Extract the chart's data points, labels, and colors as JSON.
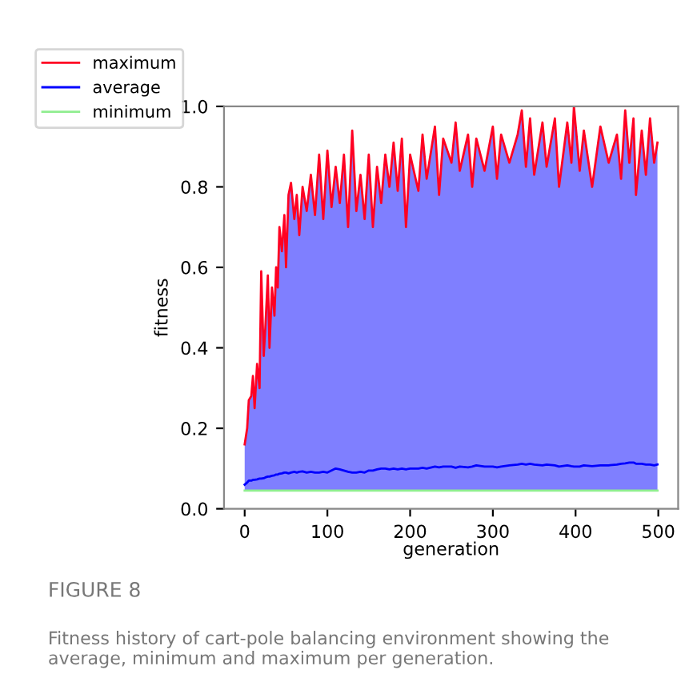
{
  "chart_data": {
    "type": "line",
    "xlabel": "generation",
    "ylabel": "fitness",
    "xlim": [
      -25,
      524
    ],
    "xticks": [
      0,
      100,
      200,
      300,
      400,
      500
    ],
    "ylim": [
      0.0,
      1.0
    ],
    "yticks": [
      {
        "value": 0.0,
        "label": "0.0"
      },
      0.2,
      0.4,
      0.6,
      0.8,
      {
        "value": 1.0,
        "label": "1.0"
      }
    ],
    "grid": false,
    "legend": "top left",
    "annotations": [
      "FIGURE 8",
      "Fitness history of cart-pole balancing environment showing the average, minimum and maximum per generation."
    ],
    "series": [
      {
        "name": "maximum",
        "color": "#ff0022",
        "x": [
          0,
          3,
          5,
          8,
          10,
          12,
          15,
          18,
          20,
          23,
          25,
          28,
          30,
          33,
          36,
          38,
          40,
          42,
          45,
          48,
          50,
          53,
          56,
          60,
          63,
          66,
          70,
          75,
          80,
          85,
          90,
          95,
          100,
          105,
          110,
          115,
          120,
          125,
          130,
          135,
          140,
          145,
          150,
          155,
          160,
          165,
          170,
          175,
          180,
          185,
          190,
          195,
          200,
          210,
          215,
          220,
          230,
          235,
          240,
          250,
          255,
          260,
          270,
          275,
          280,
          290,
          300,
          305,
          310,
          320,
          330,
          335,
          340,
          345,
          350,
          360,
          365,
          375,
          380,
          390,
          395,
          398,
          405,
          410,
          420,
          430,
          440,
          450,
          455,
          460,
          465,
          470,
          473,
          480,
          485,
          490,
          495,
          499
        ],
        "values": [
          0.16,
          0.2,
          0.27,
          0.28,
          0.33,
          0.25,
          0.36,
          0.3,
          0.59,
          0.38,
          0.45,
          0.58,
          0.4,
          0.55,
          0.48,
          0.6,
          0.55,
          0.7,
          0.64,
          0.73,
          0.6,
          0.78,
          0.81,
          0.72,
          0.78,
          0.68,
          0.8,
          0.74,
          0.83,
          0.73,
          0.88,
          0.72,
          0.89,
          0.75,
          0.85,
          0.76,
          0.88,
          0.7,
          0.94,
          0.74,
          0.83,
          0.72,
          0.88,
          0.7,
          0.85,
          0.76,
          0.88,
          0.8,
          0.91,
          0.79,
          0.92,
          0.7,
          0.88,
          0.79,
          0.93,
          0.82,
          0.95,
          0.78,
          0.92,
          0.86,
          0.96,
          0.84,
          0.93,
          0.8,
          0.92,
          0.84,
          0.95,
          0.82,
          0.93,
          0.86,
          0.93,
          0.99,
          0.85,
          0.97,
          0.83,
          0.96,
          0.85,
          0.97,
          0.8,
          0.96,
          0.86,
          1.0,
          0.84,
          0.94,
          0.8,
          0.95,
          0.86,
          0.93,
          0.82,
          0.99,
          0.86,
          0.97,
          0.78,
          0.94,
          0.83,
          0.97,
          0.86,
          0.91
        ]
      },
      {
        "name": "average",
        "color": "#0000ff",
        "x": [
          0,
          3,
          5,
          8,
          10,
          12,
          15,
          18,
          20,
          23,
          25,
          28,
          30,
          33,
          36,
          38,
          40,
          42,
          45,
          48,
          50,
          53,
          56,
          60,
          63,
          66,
          70,
          75,
          80,
          85,
          90,
          95,
          100,
          105,
          110,
          115,
          120,
          125,
          130,
          135,
          140,
          145,
          150,
          155,
          160,
          165,
          170,
          175,
          180,
          185,
          190,
          195,
          200,
          210,
          215,
          220,
          230,
          235,
          240,
          250,
          255,
          260,
          270,
          275,
          280,
          290,
          300,
          305,
          310,
          320,
          330,
          335,
          340,
          345,
          350,
          360,
          365,
          375,
          380,
          390,
          395,
          398,
          405,
          410,
          420,
          430,
          440,
          450,
          455,
          460,
          465,
          470,
          473,
          480,
          485,
          490,
          495,
          499
        ],
        "values": [
          0.06,
          0.065,
          0.07,
          0.07,
          0.072,
          0.072,
          0.073,
          0.075,
          0.075,
          0.076,
          0.078,
          0.08,
          0.08,
          0.082,
          0.083,
          0.085,
          0.085,
          0.087,
          0.088,
          0.09,
          0.09,
          0.088,
          0.09,
          0.092,
          0.09,
          0.092,
          0.093,
          0.09,
          0.092,
          0.09,
          0.09,
          0.092,
          0.09,
          0.095,
          0.1,
          0.098,
          0.095,
          0.092,
          0.09,
          0.09,
          0.092,
          0.09,
          0.095,
          0.095,
          0.098,
          0.1,
          0.1,
          0.098,
          0.1,
          0.098,
          0.1,
          0.098,
          0.1,
          0.1,
          0.102,
          0.1,
          0.105,
          0.103,
          0.105,
          0.105,
          0.102,
          0.105,
          0.103,
          0.105,
          0.108,
          0.105,
          0.105,
          0.103,
          0.105,
          0.108,
          0.11,
          0.112,
          0.11,
          0.112,
          0.11,
          0.108,
          0.11,
          0.108,
          0.105,
          0.108,
          0.106,
          0.105,
          0.105,
          0.108,
          0.106,
          0.108,
          0.108,
          0.11,
          0.112,
          0.113,
          0.115,
          0.115,
          0.112,
          0.112,
          0.11,
          0.11,
          0.108,
          0.11
        ],
        "lower": [
          0.045,
          0.045,
          0.045,
          0.045,
          0.045,
          0.045,
          0.045,
          0.045,
          0.045,
          0.045,
          0.045,
          0.045,
          0.045,
          0.045,
          0.045,
          0.045,
          0.045,
          0.045,
          0.045,
          0.045,
          0.045,
          0.045,
          0.045,
          0.045,
          0.045,
          0.045,
          0.045,
          0.045,
          0.045,
          0.045,
          0.045,
          0.045,
          0.045,
          0.045,
          0.045,
          0.045,
          0.045,
          0.045,
          0.045,
          0.045,
          0.045,
          0.045,
          0.045,
          0.045,
          0.045,
          0.045,
          0.045,
          0.045,
          0.045,
          0.045,
          0.045,
          0.045,
          0.045,
          0.045,
          0.045,
          0.045,
          0.045,
          0.045,
          0.045,
          0.045,
          0.045,
          0.045,
          0.045,
          0.045,
          0.045,
          0.045,
          0.045,
          0.045,
          0.045,
          0.045,
          0.045,
          0.045,
          0.045,
          0.045,
          0.045,
          0.045,
          0.045,
          0.045,
          0.045,
          0.045,
          0.045,
          0.045,
          0.045,
          0.045,
          0.045,
          0.045,
          0.045,
          0.045,
          0.045,
          0.045,
          0.045,
          0.045,
          0.045,
          0.045,
          0.045,
          0.045,
          0.045,
          0.045
        ],
        "upper": [
          0.16,
          0.2,
          0.27,
          0.28,
          0.33,
          0.25,
          0.36,
          0.3,
          0.59,
          0.38,
          0.45,
          0.58,
          0.4,
          0.55,
          0.48,
          0.6,
          0.55,
          0.7,
          0.64,
          0.73,
          0.6,
          0.78,
          0.81,
          0.72,
          0.78,
          0.68,
          0.8,
          0.74,
          0.83,
          0.73,
          0.88,
          0.72,
          0.89,
          0.75,
          0.85,
          0.76,
          0.88,
          0.7,
          0.94,
          0.74,
          0.83,
          0.72,
          0.88,
          0.7,
          0.85,
          0.76,
          0.88,
          0.8,
          0.91,
          0.79,
          0.92,
          0.7,
          0.88,
          0.79,
          0.93,
          0.82,
          0.95,
          0.78,
          0.92,
          0.86,
          0.96,
          0.84,
          0.93,
          0.8,
          0.92,
          0.84,
          0.95,
          0.82,
          0.93,
          0.86,
          0.93,
          0.99,
          0.85,
          0.97,
          0.83,
          0.96,
          0.85,
          0.97,
          0.8,
          0.96,
          0.86,
          1.0,
          0.84,
          0.94,
          0.8,
          0.95,
          0.86,
          0.93,
          0.82,
          0.99,
          0.86,
          0.97,
          0.78,
          0.94,
          0.83,
          0.97,
          0.86,
          0.91
        ]
      },
      {
        "name": "minimum",
        "color": "#90ee90",
        "x": [
          0,
          499
        ],
        "values": [
          0.045,
          0.045
        ]
      }
    ]
  }
}
